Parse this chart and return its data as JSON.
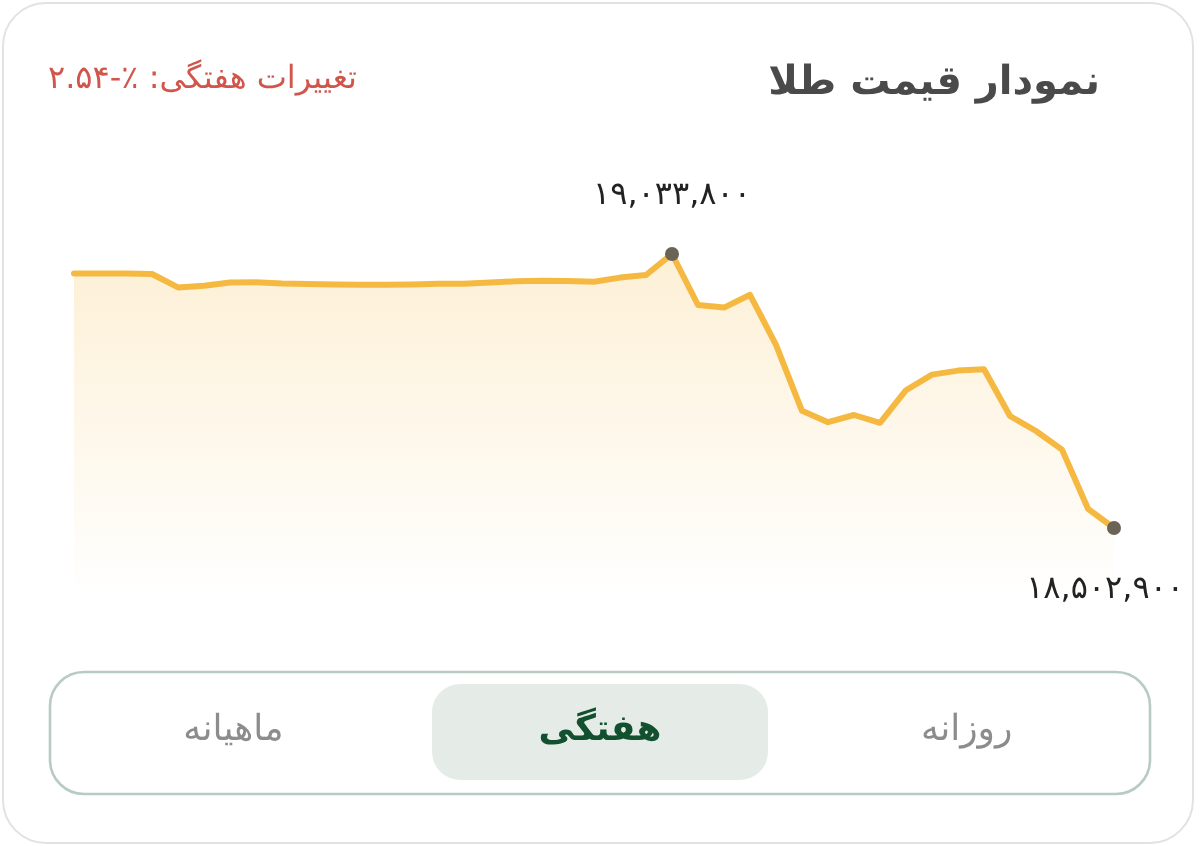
{
  "chart_data": {
    "type": "area",
    "title": "نمودار قیمت طلا",
    "subtitle": "تغییرات هفتگی: ٪-۲.۵۴",
    "color": "#f5b942",
    "categories": [
      null,
      null,
      null,
      null,
      null,
      null,
      null,
      null,
      null,
      null,
      null,
      null,
      null,
      null,
      null,
      null,
      null,
      null,
      null,
      null,
      null,
      null,
      null,
      null,
      null,
      null,
      null,
      null,
      null,
      null,
      null,
      null,
      null,
      null,
      null,
      null,
      null,
      null,
      null,
      null,
      null
    ],
    "values": [
      18996400,
      18996400,
      18996400,
      18995000,
      18969100,
      18972000,
      18978500,
      18979300,
      18977000,
      18975500,
      18974500,
      18974000,
      18974200,
      18975000,
      18976000,
      18976100,
      18978500,
      18981000,
      18982000,
      18981500,
      18980000,
      18988000,
      18993000,
      19033800,
      18935000,
      18930000,
      18954700,
      18858000,
      18730000,
      18708000,
      18722000,
      18706600,
      18770000,
      18800000,
      18808000,
      18810600,
      18720000,
      18691000,
      18655000,
      18540000,
      18502900
    ],
    "value_labels": [
      null,
      null,
      null,
      null,
      null,
      null,
      null,
      null,
      null,
      null,
      null,
      null,
      null,
      null,
      null,
      null,
      null,
      null,
      null,
      null,
      null,
      null,
      null,
      "۱۹,۰۳۳,۸۰۰",
      null,
      null,
      null,
      null,
      null,
      null,
      null,
      null,
      null,
      null,
      null,
      null,
      null,
      null,
      null,
      null,
      "۱۸,۵۰۲,۹۰۰"
    ],
    "annotations": [
      "روزانه",
      "هفتگی",
      "ماهیانه"
    ]
  }
}
